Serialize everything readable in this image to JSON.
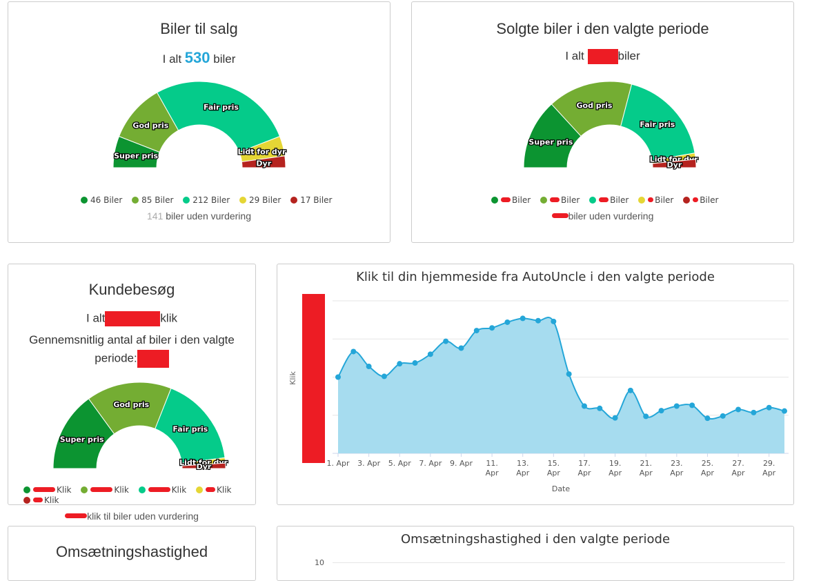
{
  "colors": {
    "super": "#0c9431",
    "god": "#74ad33",
    "fair": "#05cb8a",
    "lidt": "#e5d635",
    "dyr": "#b5231f",
    "line": "#24a6d8",
    "area": "#a6dcef",
    "redact": "#ed1c24"
  },
  "panel1": {
    "title": "Biler til salg",
    "total_prefix": "I alt",
    "total_value": "530",
    "total_suffix": "biler",
    "segments": [
      {
        "label": "Super pris",
        "value": 46,
        "color": "#0c9431"
      },
      {
        "label": "God pris",
        "value": 85,
        "color": "#74ad33"
      },
      {
        "label": "Fair pris",
        "value": 212,
        "color": "#05cb8a"
      },
      {
        "label": "Lidt for dyr",
        "value": 29,
        "color": "#e5d635"
      },
      {
        "label": "Dyr",
        "value": 17,
        "color": "#b5231f"
      }
    ],
    "legend": [
      "46 Biler",
      "85 Biler",
      "212 Biler",
      "29 Biler",
      "17 Biler"
    ],
    "unrated_count": "141",
    "unrated_text": "biler uden vurdering"
  },
  "panel2": {
    "title": "Solgte biler i den valgte periode",
    "total_prefix": "I alt",
    "total_suffix": "biler",
    "segments": [
      {
        "label": "Super pris",
        "value": 34,
        "color": "#0c9431"
      },
      {
        "label": "God pris",
        "value": 41,
        "color": "#74ad33"
      },
      {
        "label": "Fair pris",
        "value": 47,
        "color": "#05cb8a"
      },
      {
        "label": "Lidt for dyr",
        "value": 3,
        "color": "#e5d635"
      },
      {
        "label": "Dyr",
        "value": 4,
        "color": "#b5231f"
      }
    ],
    "legend": [
      "Biler",
      "Biler",
      "Biler",
      "Biler",
      "Biler"
    ],
    "unrated_text": "biler uden vurdering"
  },
  "panel3": {
    "title": "Kundebesøg",
    "total_prefix": "I alt",
    "total_suffix": "klik",
    "avg_text": "Gennemsnitlig antal af biler i den valgte",
    "avg_text2": "periode:",
    "segments": [
      {
        "label": "Super pris",
        "value": 30,
        "color": "#0c9431"
      },
      {
        "label": "God pris",
        "value": 32,
        "color": "#74ad33"
      },
      {
        "label": "Fair pris",
        "value": 34,
        "color": "#05cb8a"
      },
      {
        "label": "Lidt for dyr",
        "value": 2,
        "color": "#e5d635"
      },
      {
        "label": "Dyr",
        "value": 2,
        "color": "#b5231f"
      }
    ],
    "legend": [
      "Klik",
      "Klik",
      "Klik",
      "Klik",
      "Klik"
    ],
    "unrated_text": "klik til biler uden vurdering"
  },
  "panel4": {
    "chart_data": {
      "type": "area",
      "title": "Klik til din hjemmeside fra AutoUncle i den valgte periode",
      "xlabel": "Date",
      "ylabel": "Klik",
      "categories": [
        "1. Apr",
        "2. Apr",
        "3. Apr",
        "4. Apr",
        "5. Apr",
        "6. Apr",
        "7. Apr",
        "8. Apr",
        "9. Apr",
        "10. Apr",
        "11. Apr",
        "12. Apr",
        "13. Apr",
        "14. Apr",
        "15. Apr",
        "16. Apr",
        "17. Apr",
        "18. Apr",
        "19. Apr",
        "20. Apr",
        "21. Apr",
        "22. Apr",
        "23. Apr",
        "24. Apr",
        "25. Apr",
        "26. Apr",
        "27. Apr",
        "28. Apr",
        "29. Apr",
        "30. Apr"
      ],
      "tick_labels": [
        "1. Apr",
        "3. Apr",
        "5. Apr",
        "7. Apr",
        "9. Apr",
        "11. Apr",
        "13. Apr",
        "15. Apr",
        "17. Apr",
        "19. Apr",
        "21. Apr",
        "23. Apr",
        "25. Apr",
        "27. Apr",
        "29. Apr"
      ],
      "values": [
        2.0,
        2.67,
        2.28,
        2.02,
        2.35,
        2.37,
        2.6,
        2.94,
        2.76,
        3.22,
        3.29,
        3.44,
        3.54,
        3.48,
        3.46,
        2.08,
        1.24,
        1.18,
        0.93,
        1.65,
        0.97,
        1.12,
        1.24,
        1.26,
        0.92,
        0.98,
        1.15,
        1.07,
        1.2,
        1.11
      ],
      "ylim": [
        0,
        4
      ],
      "grid": true,
      "legend": false
    }
  },
  "panel5": {
    "title": "Omsætningshastighed"
  },
  "panel6": {
    "title": "Omsætningshastighed i den valgte periode",
    "first_tick": "10"
  }
}
